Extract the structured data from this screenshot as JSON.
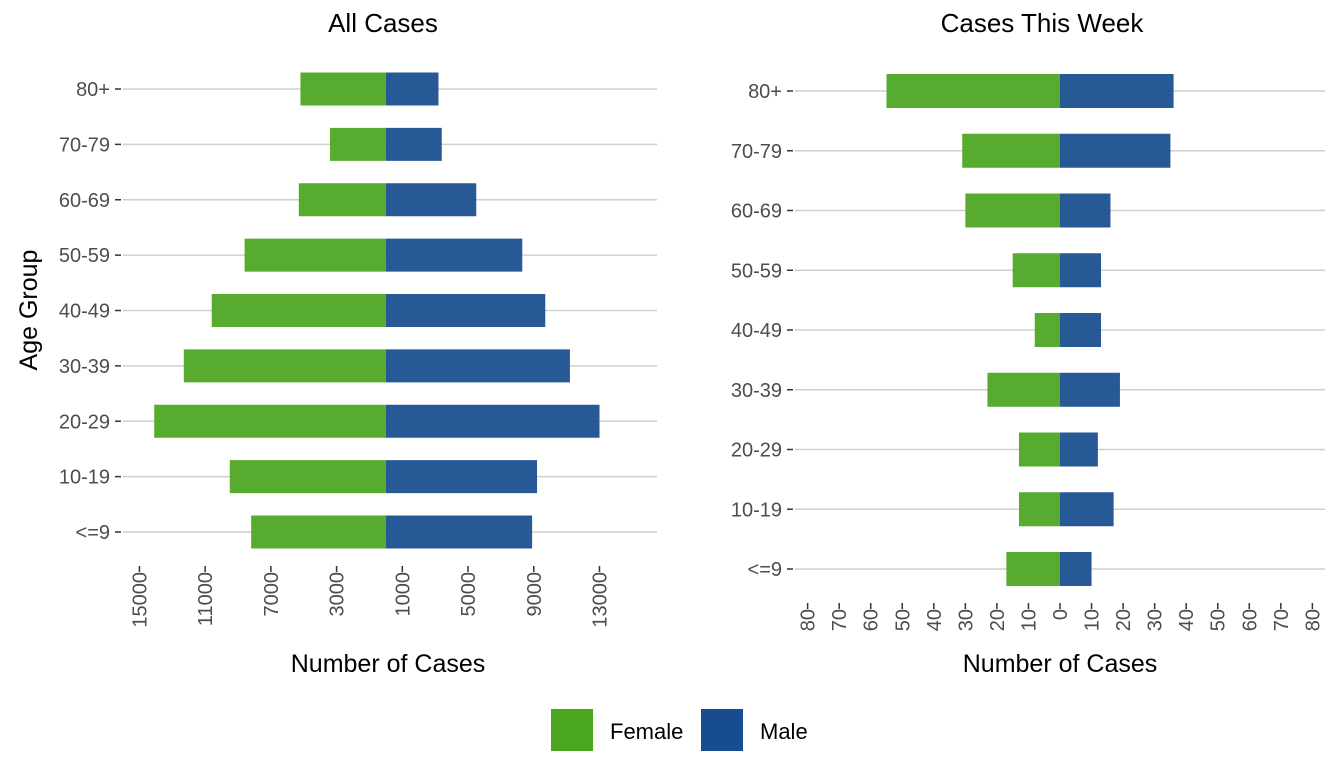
{
  "legend": {
    "items": [
      {
        "label": "Female",
        "color": "#4aa61f"
      },
      {
        "label": "Male",
        "color": "#174c8f"
      }
    ]
  },
  "chart_data": [
    {
      "type": "bar",
      "orientation": "horizontal-diverging",
      "title": "All Cases",
      "xlabel": "Number of Cases",
      "ylabel": "Age Group",
      "categories": [
        "<=9",
        "10-19",
        "20-29",
        "30-39",
        "40-49",
        "50-59",
        "60-69",
        "70-79",
        "80+"
      ],
      "x_tick_labels": [
        "15000",
        "11000",
        "7000",
        "3000",
        "1000",
        "5000",
        "9000",
        "13000"
      ],
      "x_tick_values": [
        -15000,
        -11000,
        -7000,
        -3000,
        1000,
        5000,
        9000,
        13000
      ],
      "xlim": [
        -16000,
        16500
      ],
      "series": [
        {
          "name": "Female",
          "color": "#4aa61f",
          "values": [
            -8200,
            -9500,
            -14100,
            -12300,
            -10600,
            -8600,
            -5300,
            -3400,
            -5200
          ]
        },
        {
          "name": "Male",
          "color": "#174c8f",
          "values": [
            8900,
            9200,
            13000,
            11200,
            9700,
            8300,
            5500,
            3400,
            3200
          ]
        }
      ],
      "grid": true,
      "legend_position": "bottom"
    },
    {
      "type": "bar",
      "orientation": "horizontal-diverging",
      "title": "Cases This Week",
      "xlabel": "Number of Cases",
      "ylabel": "",
      "categories": [
        "<=9",
        "10-19",
        "20-29",
        "30-39",
        "40-49",
        "50-59",
        "60-69",
        "70-79",
        "80+"
      ],
      "x_tick_labels": [
        "80",
        "70",
        "60",
        "50",
        "40",
        "30",
        "20",
        "10",
        "0",
        "10",
        "20",
        "30",
        "40",
        "50",
        "60",
        "70",
        "80"
      ],
      "x_tick_values": [
        -80,
        -70,
        -60,
        -50,
        -40,
        -30,
        -20,
        -10,
        0,
        10,
        20,
        30,
        40,
        50,
        60,
        70,
        80
      ],
      "xlim": [
        -84,
        84
      ],
      "series": [
        {
          "name": "Female",
          "color": "#4aa61f",
          "values": [
            -17,
            -13,
            -13,
            -23,
            -8,
            -15,
            -30,
            -31,
            -55
          ]
        },
        {
          "name": "Male",
          "color": "#174c8f",
          "values": [
            10,
            17,
            12,
            19,
            13,
            13,
            16,
            35,
            36
          ]
        }
      ],
      "grid": true,
      "legend_position": "bottom"
    }
  ]
}
